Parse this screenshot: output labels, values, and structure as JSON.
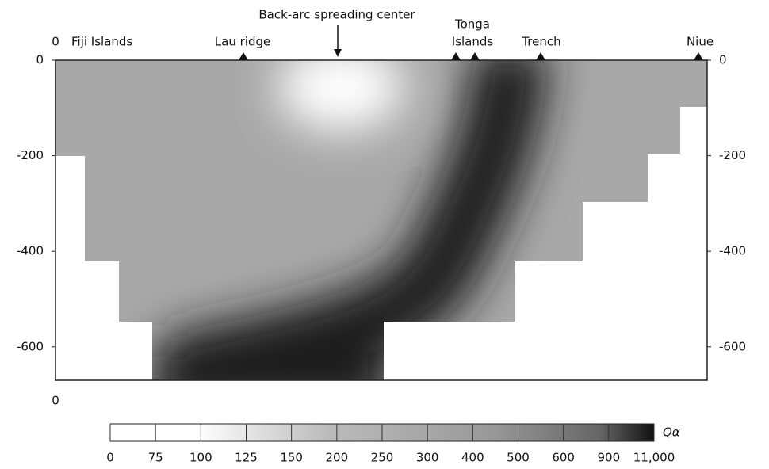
{
  "chart_data": {
    "type": "heatmap",
    "annotations": [
      "Fiji Islands",
      "Lau ridge",
      "Back-arc spreading center",
      "Tonga",
      "Islands",
      "Trench",
      "Niue"
    ],
    "xticks": [
      0
    ],
    "ylim": [
      -670,
      0
    ],
    "yticks": [
      0,
      -200,
      -400,
      -600
    ],
    "colorbar": {
      "label": "Qα",
      "ticks": [
        0,
        75,
        100,
        125,
        150,
        200,
        250,
        300,
        400,
        500,
        600,
        900,
        {
          "value": 11000,
          "label": "11,000"
        }
      ]
    }
  }
}
